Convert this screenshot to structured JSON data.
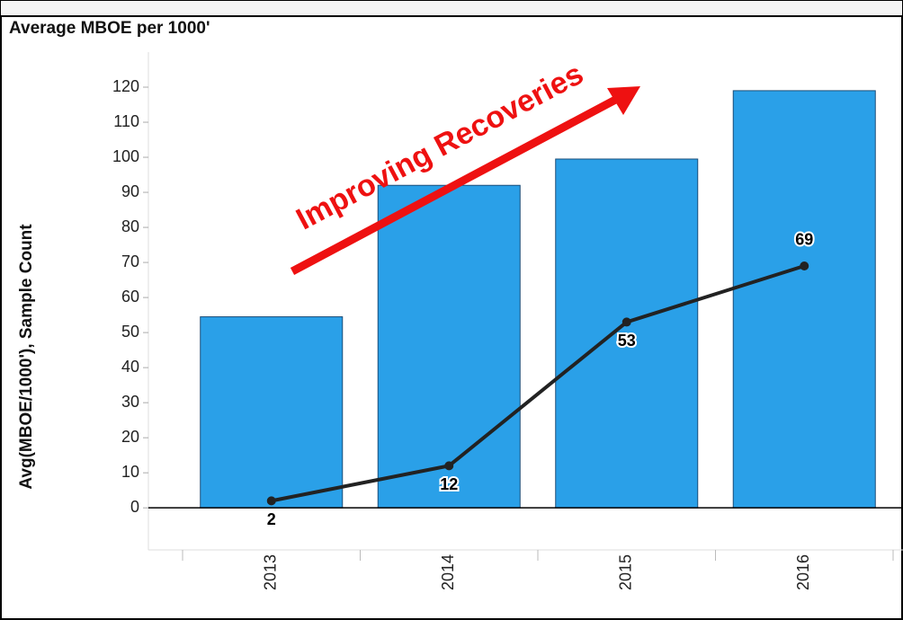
{
  "chart_data": {
    "type": "bar",
    "title": "Average MBOE per 1000'",
    "y_label": "Avg(MBOE/1000'), Sample Count",
    "annotation": "Improving Recoveries",
    "categories": [
      "2013",
      "2014",
      "2015",
      "2016"
    ],
    "series": [
      {
        "type": "bar",
        "color": "#2aa0e8",
        "values": [
          54.5,
          92,
          99.5,
          119
        ]
      },
      {
        "type": "line",
        "color": "#222222",
        "values": [
          2,
          12,
          53,
          69
        ]
      }
    ],
    "ylim": [
      -12,
      130
    ],
    "yticks": [
      0,
      10,
      20,
      30,
      40,
      50,
      60,
      70,
      80,
      90,
      100,
      110,
      120
    ],
    "grid": false
  }
}
